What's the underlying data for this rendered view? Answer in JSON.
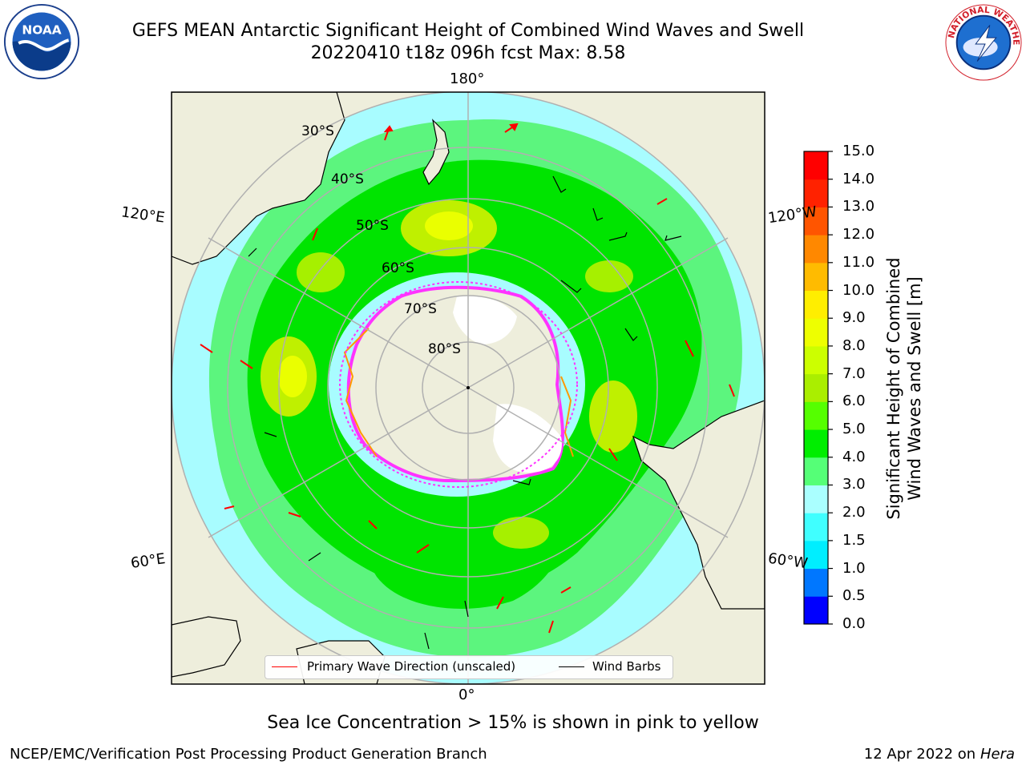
{
  "header": {
    "title_line1": "GEFS MEAN Antarctic Significant Height of Combined Wind Waves and Swell",
    "title_line2": "20220410 t18z 096h fcst   Max: 8.58"
  },
  "logos": {
    "left": {
      "name": "noaa-logo",
      "text": "NOAA"
    },
    "right": {
      "name": "nws-logo",
      "text": "NATIONAL WEATHER SERVICE"
    }
  },
  "map": {
    "projection": "south-polar-stereographic",
    "longitude_labels": {
      "top": "180°",
      "bottom": "0°",
      "upper_left": "120°E",
      "lower_left": "60°E",
      "upper_right": "120°W",
      "lower_right": "60°W"
    },
    "latitude_labels": [
      "30°S",
      "40°S",
      "50°S",
      "60°S",
      "70°S",
      "80°S"
    ],
    "colors": {
      "land": "#eeeedc",
      "ice_shelf": "#ffffff",
      "sea_ice_edge": "#ff33ff",
      "grid": "#b0b0b0",
      "wave_arrow": "#ff0000",
      "wind_barb": "#000000"
    }
  },
  "legend": {
    "wave_direction": "Primary Wave Direction (unscaled)",
    "wind_barbs": "Wind Barbs"
  },
  "colorbar": {
    "title_line1": "Significant Height of Combined",
    "title_line2": "Wind Waves and Swell [m]",
    "ticks": [
      "0.0",
      "0.5",
      "1.0",
      "1.5",
      "2.0",
      "3.0",
      "4.0",
      "5.0",
      "6.0",
      "7.0",
      "8.0",
      "9.0",
      "10.0",
      "11.0",
      "12.0",
      "13.0",
      "14.0",
      "15.0"
    ],
    "colors": [
      "#0000ff",
      "#0077ff",
      "#00eeff",
      "#40ffff",
      "#aaffff",
      "#55ff77",
      "#00ee00",
      "#55ff00",
      "#aaee00",
      "#ccff00",
      "#eeff00",
      "#ffee00",
      "#ffbb00",
      "#ff8800",
      "#ff5500",
      "#ff2200",
      "#ff0000"
    ]
  },
  "sub_note": "Sea Ice Concentration > 15% is shown in pink to yellow",
  "footer": {
    "left": "NCEP/EMC/Verification Post Processing Product Generation Branch",
    "right_date": "12 Apr 2022 on",
    "right_machine": "Hera"
  }
}
